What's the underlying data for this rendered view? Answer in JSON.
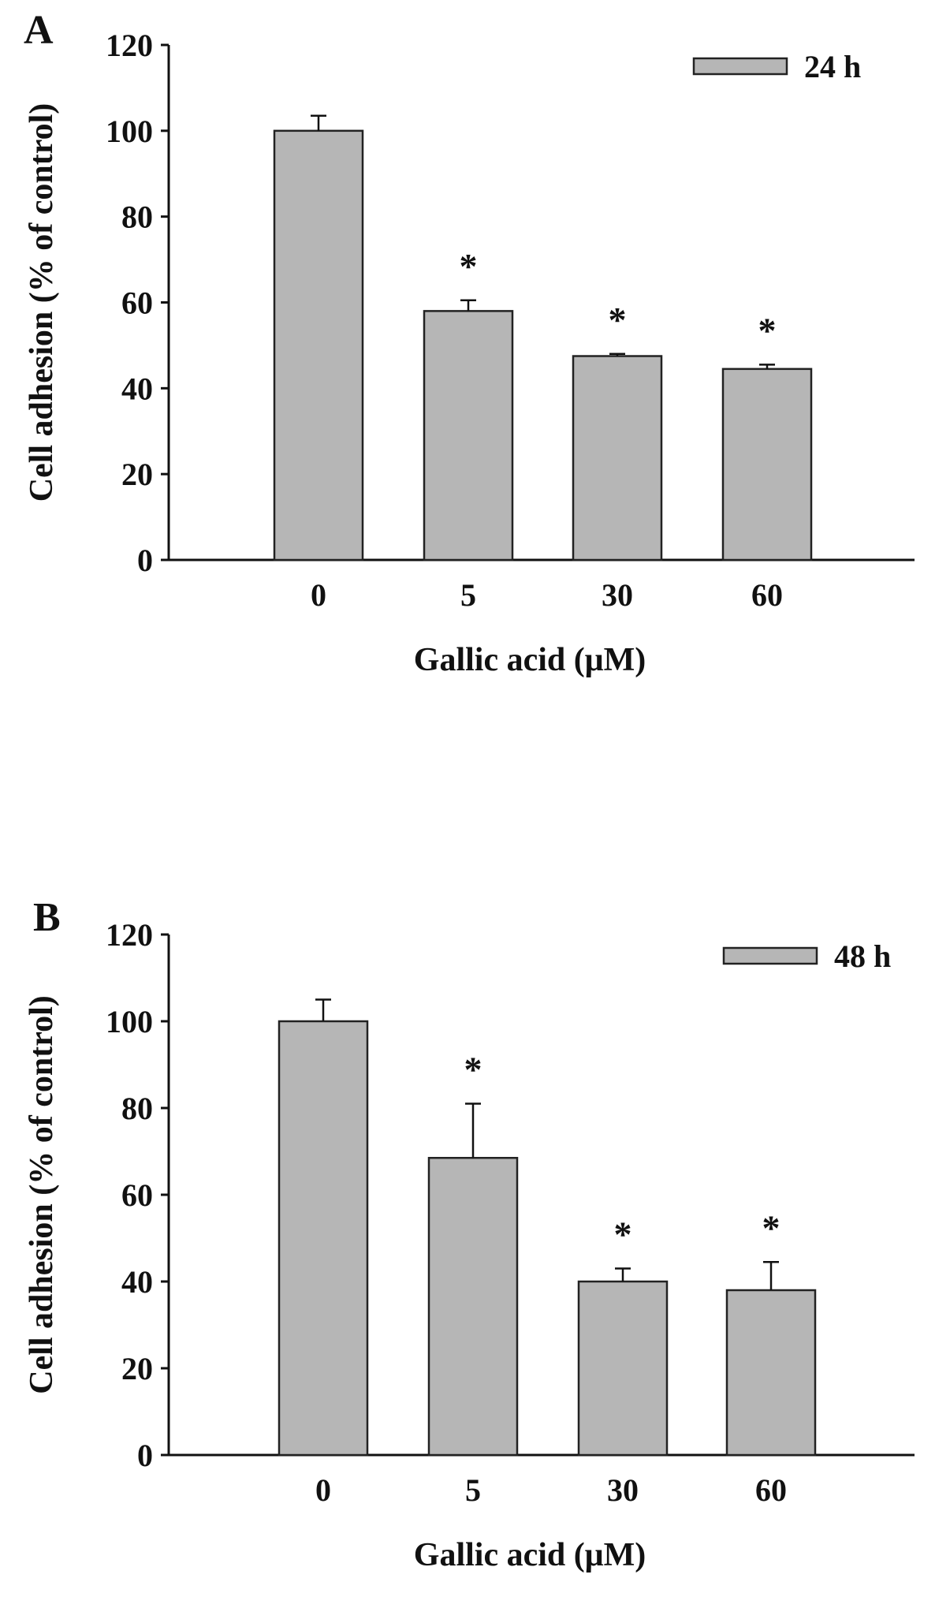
{
  "figure": {
    "colors": {
      "bar_fill": "#b6b6b6",
      "bar_stroke": "#222222",
      "axis": "#111111",
      "background": "#ffffff"
    }
  },
  "chart_data": [
    {
      "panel_label": "A",
      "type": "bar",
      "xlabel": "Gallic acid (μM)",
      "ylabel": "Cell adhesion (% of control)",
      "ylim": [
        0,
        120
      ],
      "yticks": [
        "0",
        "20",
        "40",
        "60",
        "80",
        "100",
        "120"
      ],
      "categories": [
        "0",
        "5",
        "30",
        "60"
      ],
      "series": [
        {
          "name": "24 h",
          "values": [
            100,
            58,
            47.5,
            44.5
          ],
          "error": [
            3.5,
            2.5,
            0.5,
            1
          ]
        }
      ],
      "significance": [
        "",
        "*",
        "*",
        "*"
      ],
      "legend": {
        "label": "24 h",
        "placement": "top-right"
      },
      "grid": false
    },
    {
      "panel_label": "B",
      "type": "bar",
      "xlabel": "Gallic acid (μM)",
      "ylabel": "Cell adhesion (% of control)",
      "ylim": [
        0,
        120
      ],
      "yticks": [
        "0",
        "20",
        "40",
        "60",
        "80",
        "100",
        "120"
      ],
      "categories": [
        "0",
        "5",
        "30",
        "60"
      ],
      "series": [
        {
          "name": "48 h",
          "values": [
            100,
            68.5,
            40,
            38
          ],
          "error": [
            5,
            12.5,
            3,
            6.5
          ]
        }
      ],
      "significance": [
        "",
        "*",
        "*",
        "*"
      ],
      "legend": {
        "label": "48 h",
        "placement": "top-right"
      },
      "grid": false
    }
  ]
}
